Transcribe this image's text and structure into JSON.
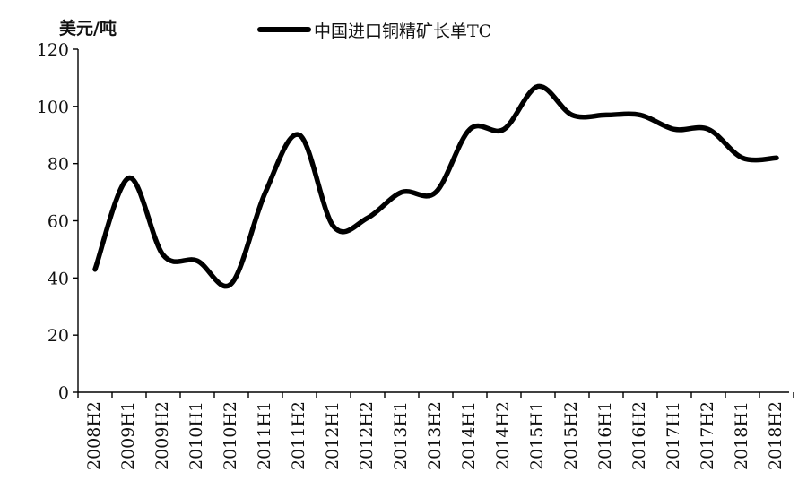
{
  "chart_data": {
    "type": "line",
    "title": "",
    "ylabel": "美元/吨",
    "xlabel": "",
    "ylim": [
      0,
      120
    ],
    "yticks": [
      0,
      20,
      40,
      60,
      80,
      100,
      120
    ],
    "grid": false,
    "legend_position": "top-center",
    "categories": [
      "2008H2",
      "2009H1",
      "2009H2",
      "2010H1",
      "2010H2",
      "2011H1",
      "2011H2",
      "2012H1",
      "2012H2",
      "2013H1",
      "2013H2",
      "2014H1",
      "2014H2",
      "2015H1",
      "2015H2",
      "2016H1",
      "2016H2",
      "2017H1",
      "2017H2",
      "2018H1",
      "2018H2"
    ],
    "series": [
      {
        "name": "中国进口铜精矿长单TC",
        "color": "#000000",
        "values": [
          43,
          75,
          48,
          46,
          38,
          70,
          90,
          58,
          61,
          70,
          70,
          92,
          92,
          107,
          97,
          97,
          97,
          92,
          92,
          82,
          82
        ]
      }
    ]
  }
}
